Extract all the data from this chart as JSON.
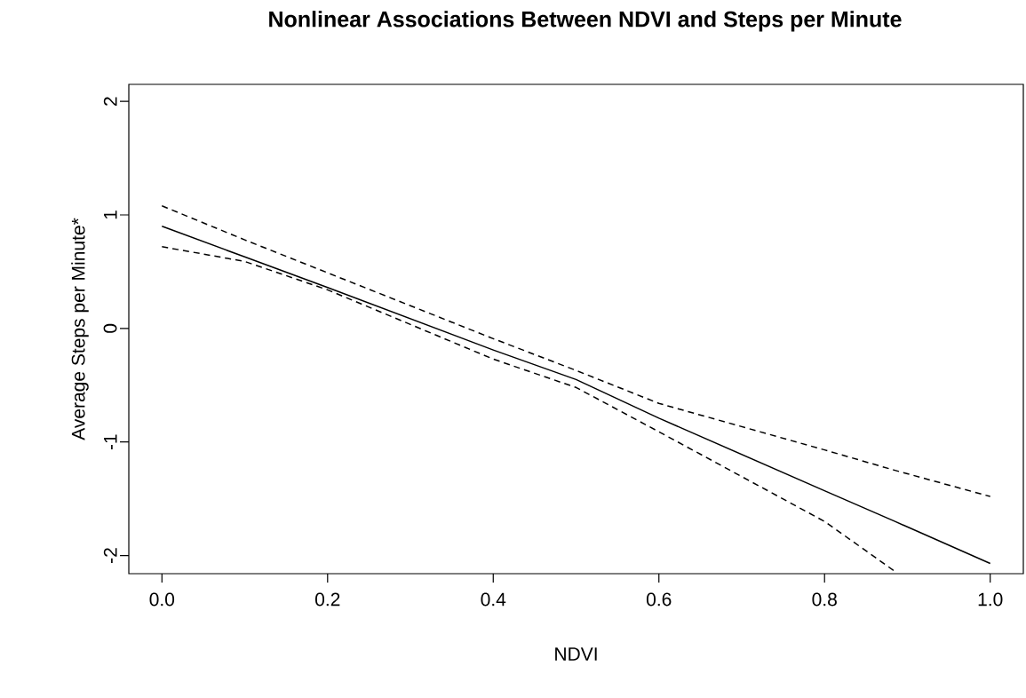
{
  "chart_data": {
    "type": "line",
    "title": "Nonlinear Associations Between NDVI and Steps per Minute",
    "xlabel": "NDVI",
    "ylabel": "Average Steps per Minute*",
    "x": [
      0,
      0.1,
      0.2,
      0.4,
      0.5,
      0.6,
      0.8,
      0.885,
      1.0
    ],
    "series": [
      {
        "color": "#000000",
        "line_style": "solid",
        "values": [
          0.9,
          0.63,
          0.36,
          -0.19,
          -0.45,
          -0.79,
          -1.43,
          -1.7,
          -2.07
        ]
      },
      {
        "color": "#000000",
        "line_style": "dashed",
        "values": [
          1.08,
          0.78,
          0.49,
          -0.09,
          -0.37,
          -0.66,
          -1.07,
          -1.25,
          -1.48
        ]
      },
      {
        "color": "#000000",
        "line_style": "dashed",
        "values": [
          0.72,
          0.59,
          0.34,
          -0.27,
          -0.52,
          -0.91,
          -1.7,
          -2.14,
          null
        ]
      }
    ],
    "xlim": [
      -0.04,
      1.04
    ],
    "ylim": [
      -2.16,
      2.15
    ],
    "xticks": [
      {
        "value": 0,
        "label": "0.0"
      },
      0.2,
      0.4,
      0.6,
      0.8,
      {
        "value": 1,
        "label": "1.0"
      }
    ],
    "yticks": [
      -2,
      -1,
      0,
      1,
      2
    ],
    "grid": false,
    "legend": false
  }
}
